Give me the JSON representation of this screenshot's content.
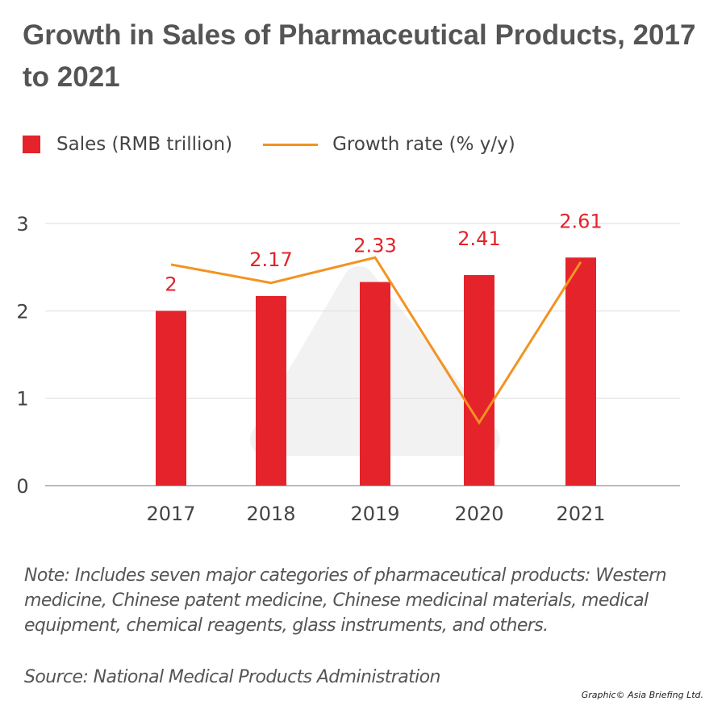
{
  "title": "Growth in Sales of Pharmaceutical Products, 2017 to 2021",
  "note": "Note: Includes seven major categories of pharmaceutical products: Western medicine, Chinese patent medicine, Chinese medicinal materials, medical equipment, chemical reagents, glass instruments, and others.",
  "source": "Source: National Medical Products Administration",
  "credit": "Graphic© Asia Briefing Ltd.",
  "colors": {
    "bar": "#e4232b",
    "line": "#f39321",
    "label": "#e4232b",
    "grid": "#dddddd"
  },
  "chart_data": {
    "type": "bar+line",
    "categories": [
      "2017",
      "2018",
      "2019",
      "2020",
      "2021"
    ],
    "series": [
      {
        "name": "Sales (RMB trillion)",
        "type": "bar",
        "values": [
          2,
          2.17,
          2.33,
          2.41,
          2.61
        ],
        "data_labels": [
          "2",
          "2.17",
          "2.33",
          "2.41",
          "2.61"
        ]
      },
      {
        "name": "Growth rate (% y/y)",
        "type": "line",
        "values": [
          2.53,
          2.32,
          2.61,
          0.72,
          2.56
        ]
      }
    ],
    "ylim": [
      0,
      3
    ],
    "yticks": [
      "0",
      "1",
      "2",
      "3"
    ],
    "grid": true,
    "legend": "top-left"
  }
}
